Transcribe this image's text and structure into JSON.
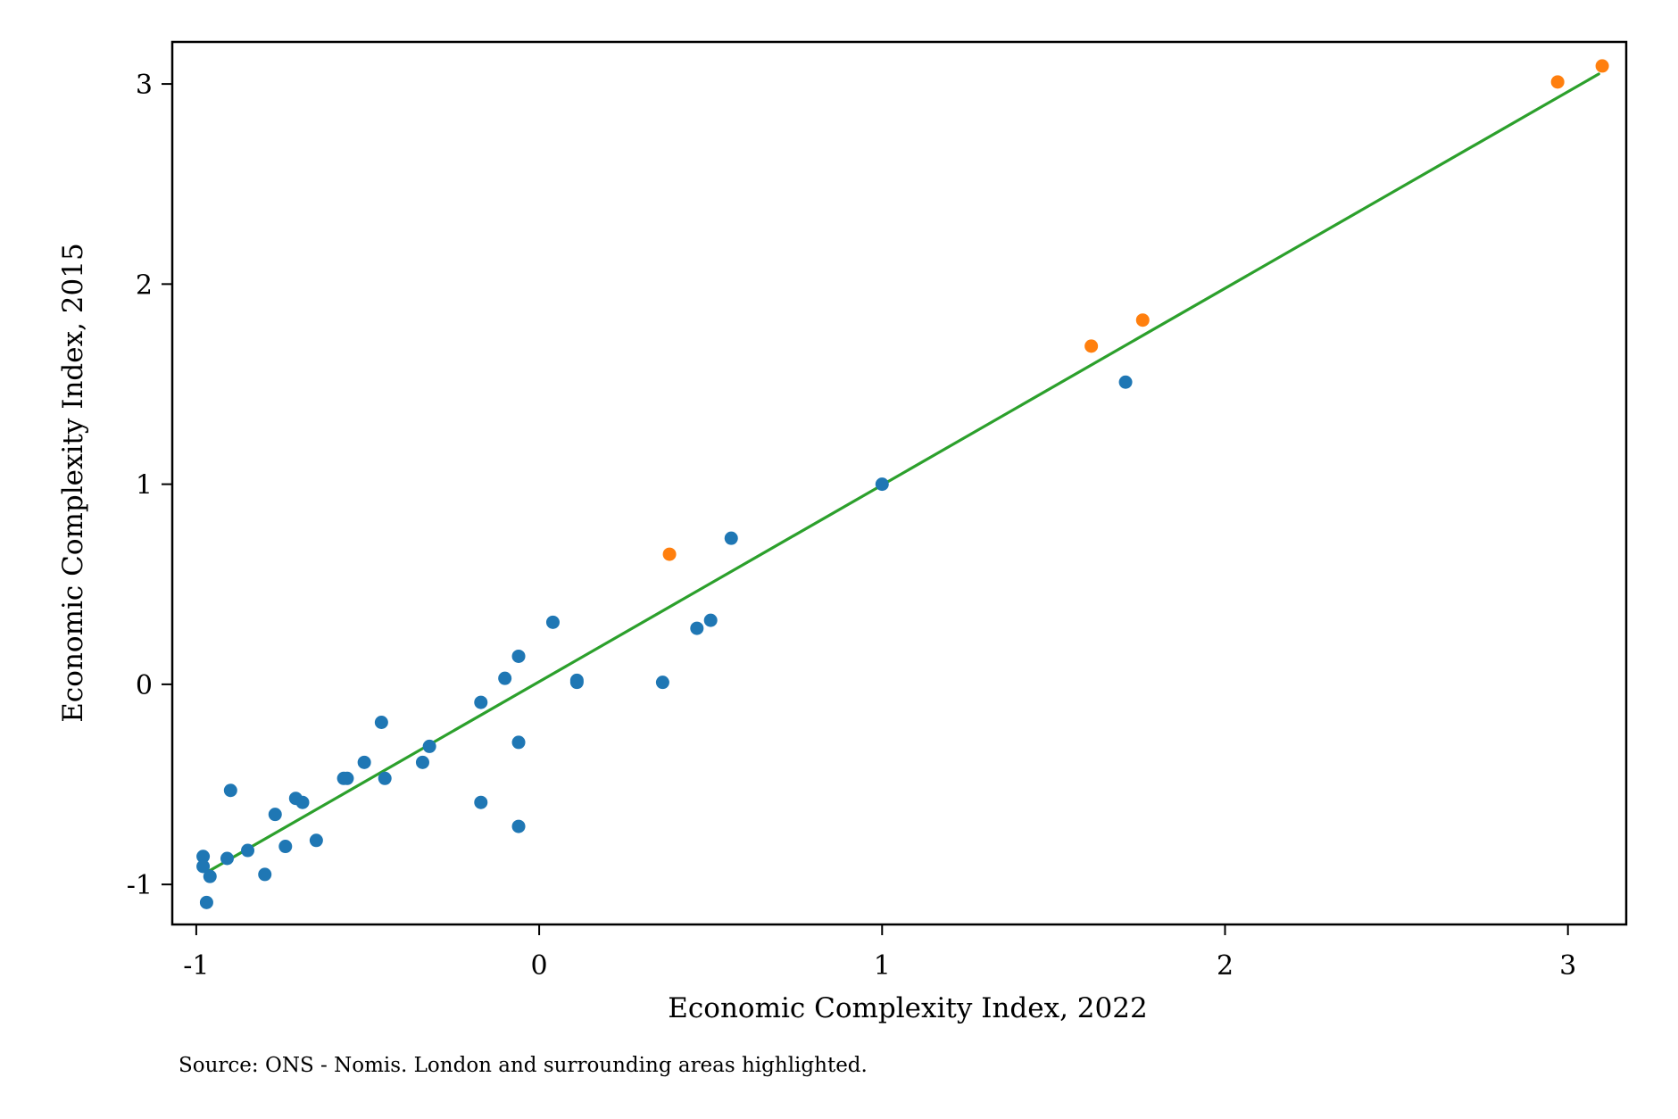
{
  "chart_data": {
    "type": "scatter",
    "title": "",
    "xlabel": "Economic Complexity Index, 2022",
    "ylabel": "Economic Complexity Index, 2015",
    "xlim": [
      -1.07,
      3.17
    ],
    "ylim": [
      -1.2,
      3.21
    ],
    "xticks": [
      -1,
      0,
      1,
      2,
      3
    ],
    "yticks": [
      -1,
      0,
      1,
      2,
      3
    ],
    "xtick_labels": [
      "-1",
      "0",
      "1",
      "2",
      "3"
    ],
    "ytick_labels": [
      "-1",
      "0",
      "1",
      "2",
      "3"
    ],
    "grid": false,
    "legend": "none",
    "note": "Source: ONS - Nomis. London and surrounding areas highlighted.",
    "colors": {
      "points": "#1f77b4",
      "highlighted": "#ff7f0e",
      "fit_line": "#2ca02c",
      "frame": "#000000"
    },
    "series": [
      {
        "color": "#1f77b4",
        "points": [
          [
            -0.97,
            -1.09
          ],
          [
            -0.98,
            -0.86
          ],
          [
            -0.98,
            -0.91
          ],
          [
            -0.96,
            -0.96
          ],
          [
            -0.91,
            -0.87
          ],
          [
            -0.9,
            -0.53
          ],
          [
            -0.85,
            -0.83
          ],
          [
            -0.8,
            -0.95
          ],
          [
            -0.77,
            -0.65
          ],
          [
            -0.74,
            -0.81
          ],
          [
            -0.71,
            -0.57
          ],
          [
            -0.69,
            -0.59
          ],
          [
            -0.65,
            -0.78
          ],
          [
            -0.57,
            -0.47
          ],
          [
            -0.56,
            -0.47
          ],
          [
            -0.51,
            -0.39
          ],
          [
            -0.46,
            -0.19
          ],
          [
            -0.45,
            -0.47
          ],
          [
            -0.34,
            -0.39
          ],
          [
            -0.32,
            -0.31
          ],
          [
            -0.17,
            -0.09
          ],
          [
            -0.17,
            -0.59
          ],
          [
            -0.1,
            0.03
          ],
          [
            -0.06,
            0.14
          ],
          [
            -0.06,
            -0.29
          ],
          [
            -0.06,
            -0.71
          ],
          [
            0.04,
            0.31
          ],
          [
            0.11,
            0.02
          ],
          [
            0.11,
            0.01
          ],
          [
            0.36,
            0.01
          ],
          [
            0.46,
            0.28
          ],
          [
            0.5,
            0.32
          ],
          [
            0.56,
            0.73
          ],
          [
            1.0,
            1.0
          ],
          [
            1.71,
            1.51
          ]
        ]
      },
      {
        "color": "#ff7f0e",
        "points": [
          [
            0.38,
            0.65
          ],
          [
            1.61,
            1.69
          ],
          [
            1.76,
            1.82
          ],
          [
            2.97,
            3.01
          ],
          [
            3.1,
            3.09
          ]
        ]
      }
    ],
    "fit_line": {
      "color": "#2ca02c",
      "x": [
        -0.97,
        3.09
      ],
      "y": [
        -0.94,
        3.05
      ]
    }
  }
}
